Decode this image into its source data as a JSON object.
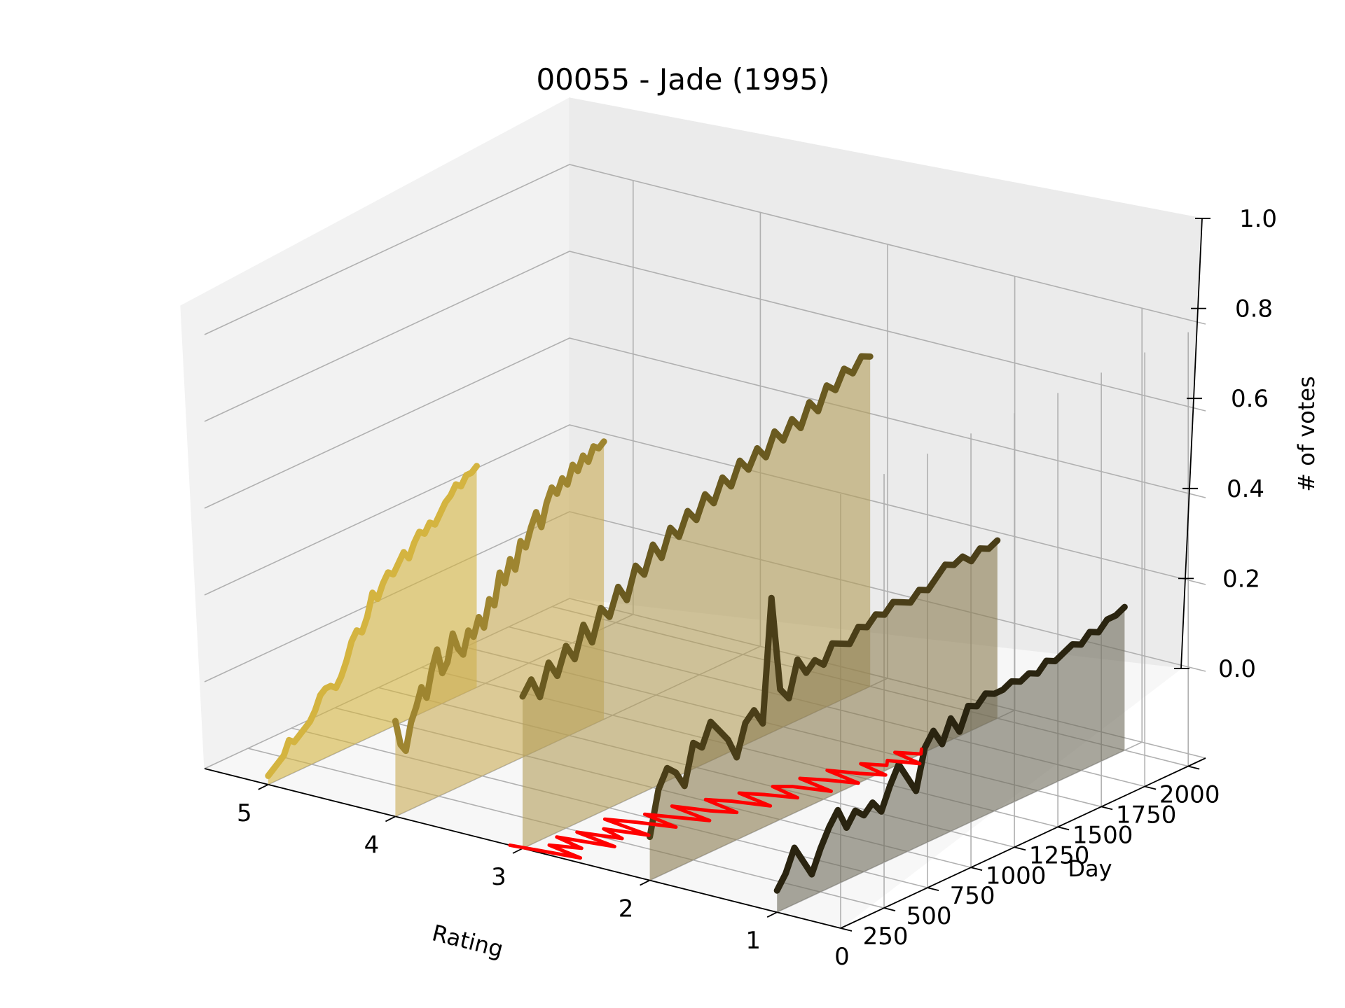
{
  "chart_data": {
    "type": "line",
    "projection": "3d",
    "title": "00055 - Jade (1995)",
    "xlabel": "Rating",
    "ylabel": "Day",
    "zlabel": "# of votes",
    "xlim": [
      0.5,
      5.5
    ],
    "ylim": [
      0,
      2100
    ],
    "zlim": [
      0,
      1
    ],
    "x_ticks": [
      "5",
      "4",
      "3",
      "2",
      "1"
    ],
    "y_ticks": [
      "0",
      "250",
      "500",
      "750",
      "1000",
      "1250",
      "1500",
      "1750",
      "2000"
    ],
    "z_ticks": [
      "0.0",
      "0.2",
      "0.4",
      "0.6",
      "0.8",
      "1.0"
    ],
    "series": [
      {
        "rating": 5,
        "color": "#d4b440",
        "fill": "#d4b440",
        "x": [
          0,
          30,
          60,
          90,
          120,
          150,
          180,
          210,
          240,
          270,
          300,
          330,
          360,
          390,
          420,
          450,
          480,
          510,
          540,
          570,
          600,
          630,
          660,
          690,
          720,
          750,
          780,
          810,
          840,
          870,
          900,
          930,
          960,
          990,
          1020,
          1050,
          1080,
          1110,
          1140,
          1170,
          1200
        ],
        "values": [
          0.02,
          0.03,
          0.04,
          0.05,
          0.08,
          0.07,
          0.08,
          0.09,
          0.1,
          0.12,
          0.15,
          0.16,
          0.16,
          0.15,
          0.17,
          0.2,
          0.24,
          0.26,
          0.25,
          0.28,
          0.33,
          0.31,
          0.34,
          0.36,
          0.35,
          0.37,
          0.39,
          0.37,
          0.4,
          0.42,
          0.41,
          0.43,
          0.42,
          0.44,
          0.46,
          0.47,
          0.49,
          0.48,
          0.5,
          0.5,
          0.51
        ]
      },
      {
        "rating": 4,
        "color": "#9e8530",
        "fill": "#c9ac55",
        "x": [
          0,
          30,
          60,
          90,
          120,
          150,
          180,
          210,
          240,
          270,
          300,
          330,
          360,
          390,
          420,
          450,
          480,
          510,
          540,
          570,
          600,
          630,
          660,
          690,
          720,
          750,
          780,
          810,
          840,
          870,
          900,
          930,
          960,
          990,
          1020,
          1050,
          1080,
          1110,
          1140,
          1170,
          1200
        ],
        "values": [
          0.22,
          0.16,
          0.14,
          0.2,
          0.23,
          0.27,
          0.24,
          0.3,
          0.34,
          0.28,
          0.3,
          0.36,
          0.32,
          0.3,
          0.35,
          0.33,
          0.37,
          0.34,
          0.4,
          0.38,
          0.45,
          0.42,
          0.47,
          0.44,
          0.5,
          0.48,
          0.52,
          0.55,
          0.51,
          0.56,
          0.59,
          0.57,
          0.6,
          0.58,
          0.62,
          0.6,
          0.63,
          0.61,
          0.64,
          0.63,
          0.64
        ]
      },
      {
        "rating": 3,
        "color": "#6a5a20",
        "fill": "#b39c58",
        "x": [
          0,
          50,
          100,
          150,
          200,
          250,
          300,
          350,
          400,
          450,
          500,
          550,
          600,
          650,
          700,
          750,
          800,
          850,
          900,
          950,
          1000,
          1050,
          1100,
          1150,
          1200,
          1250,
          1300,
          1350,
          1400,
          1450,
          1500,
          1550,
          1600,
          1650,
          1700,
          1750,
          1800,
          1850,
          1900,
          1950,
          2000
        ],
        "values": [
          0.35,
          0.38,
          0.33,
          0.4,
          0.36,
          0.42,
          0.38,
          0.45,
          0.4,
          0.47,
          0.44,
          0.5,
          0.46,
          0.53,
          0.5,
          0.56,
          0.52,
          0.58,
          0.55,
          0.6,
          0.57,
          0.62,
          0.59,
          0.64,
          0.61,
          0.66,
          0.63,
          0.67,
          0.64,
          0.69,
          0.66,
          0.7,
          0.67,
          0.72,
          0.69,
          0.74,
          0.72,
          0.76,
          0.74,
          0.77,
          0.76
        ]
      },
      {
        "rating": 2,
        "color": "#4a3e18",
        "fill": "#8a7c50",
        "x": [
          0,
          50,
          100,
          150,
          200,
          250,
          300,
          350,
          400,
          450,
          500,
          550,
          600,
          650,
          700,
          750,
          800,
          850,
          900,
          950,
          1000,
          1050,
          1100,
          1150,
          1200,
          1250,
          1300,
          1350,
          1400,
          1450,
          1500,
          1550,
          1600,
          1650,
          1700,
          1750,
          1800,
          1850,
          1900,
          1950,
          2000
        ],
        "values": [
          0.1,
          0.2,
          0.24,
          0.22,
          0.18,
          0.27,
          0.25,
          0.3,
          0.27,
          0.24,
          0.19,
          0.26,
          0.28,
          0.24,
          0.52,
          0.3,
          0.27,
          0.35,
          0.31,
          0.33,
          0.31,
          0.35,
          0.34,
          0.33,
          0.36,
          0.35,
          0.37,
          0.36,
          0.38,
          0.37,
          0.36,
          0.38,
          0.37,
          0.39,
          0.41,
          0.4,
          0.41,
          0.39,
          0.41,
          0.4,
          0.41
        ]
      },
      {
        "rating": 1,
        "color": "#2a2410",
        "fill": "#6e6a5a",
        "x": [
          0,
          50,
          100,
          150,
          200,
          250,
          300,
          350,
          400,
          450,
          500,
          550,
          600,
          650,
          700,
          750,
          800,
          850,
          900,
          950,
          1000,
          1050,
          1100,
          1150,
          1200,
          1250,
          1300,
          1350,
          1400,
          1450,
          1500,
          1550,
          1600,
          1650,
          1700,
          1750,
          1800,
          1850,
          1900,
          1950,
          2000
        ],
        "values": [
          0.05,
          0.08,
          0.13,
          0.09,
          0.05,
          0.1,
          0.14,
          0.17,
          0.12,
          0.15,
          0.13,
          0.15,
          0.12,
          0.17,
          0.21,
          0.17,
          0.13,
          0.22,
          0.25,
          0.21,
          0.26,
          0.22,
          0.27,
          0.26,
          0.28,
          0.27,
          0.27,
          0.28,
          0.27,
          0.28,
          0.27,
          0.29,
          0.28,
          0.29,
          0.3,
          0.29,
          0.31,
          0.3,
          0.32,
          0.32,
          0.33
        ]
      }
    ],
    "mean_rating": {
      "color": "#ff0000",
      "x": [
        0,
        40,
        80,
        120,
        160,
        200,
        240,
        280,
        320,
        360,
        400,
        440,
        480,
        520,
        560,
        600,
        640,
        680,
        720,
        760,
        800,
        840,
        880,
        920,
        960,
        1000,
        1040,
        1080,
        1120,
        1160,
        1200,
        1240,
        1280,
        1320,
        1360,
        1400,
        1440,
        1480,
        1520,
        1560,
        1600
      ],
      "rating_values": [
        3.1,
        2.6,
        2.9,
        2.7,
        2.95,
        2.55,
        2.9,
        2.6,
        2.8,
        2.5,
        2.9,
        2.7,
        2.45,
        2.75,
        2.55,
        2.35,
        2.7,
        2.45,
        2.3,
        2.6,
        2.45,
        2.2,
        2.5,
        2.35,
        2.15,
        2.4,
        2.3,
        2.05,
        2.35,
        2.2,
        2.0,
        2.3,
        2.1,
        1.95,
        2.2,
        2.05,
        2.1,
        1.9,
        2.15,
        2.0,
        2.05
      ],
      "z": 0
    },
    "grid": true
  }
}
